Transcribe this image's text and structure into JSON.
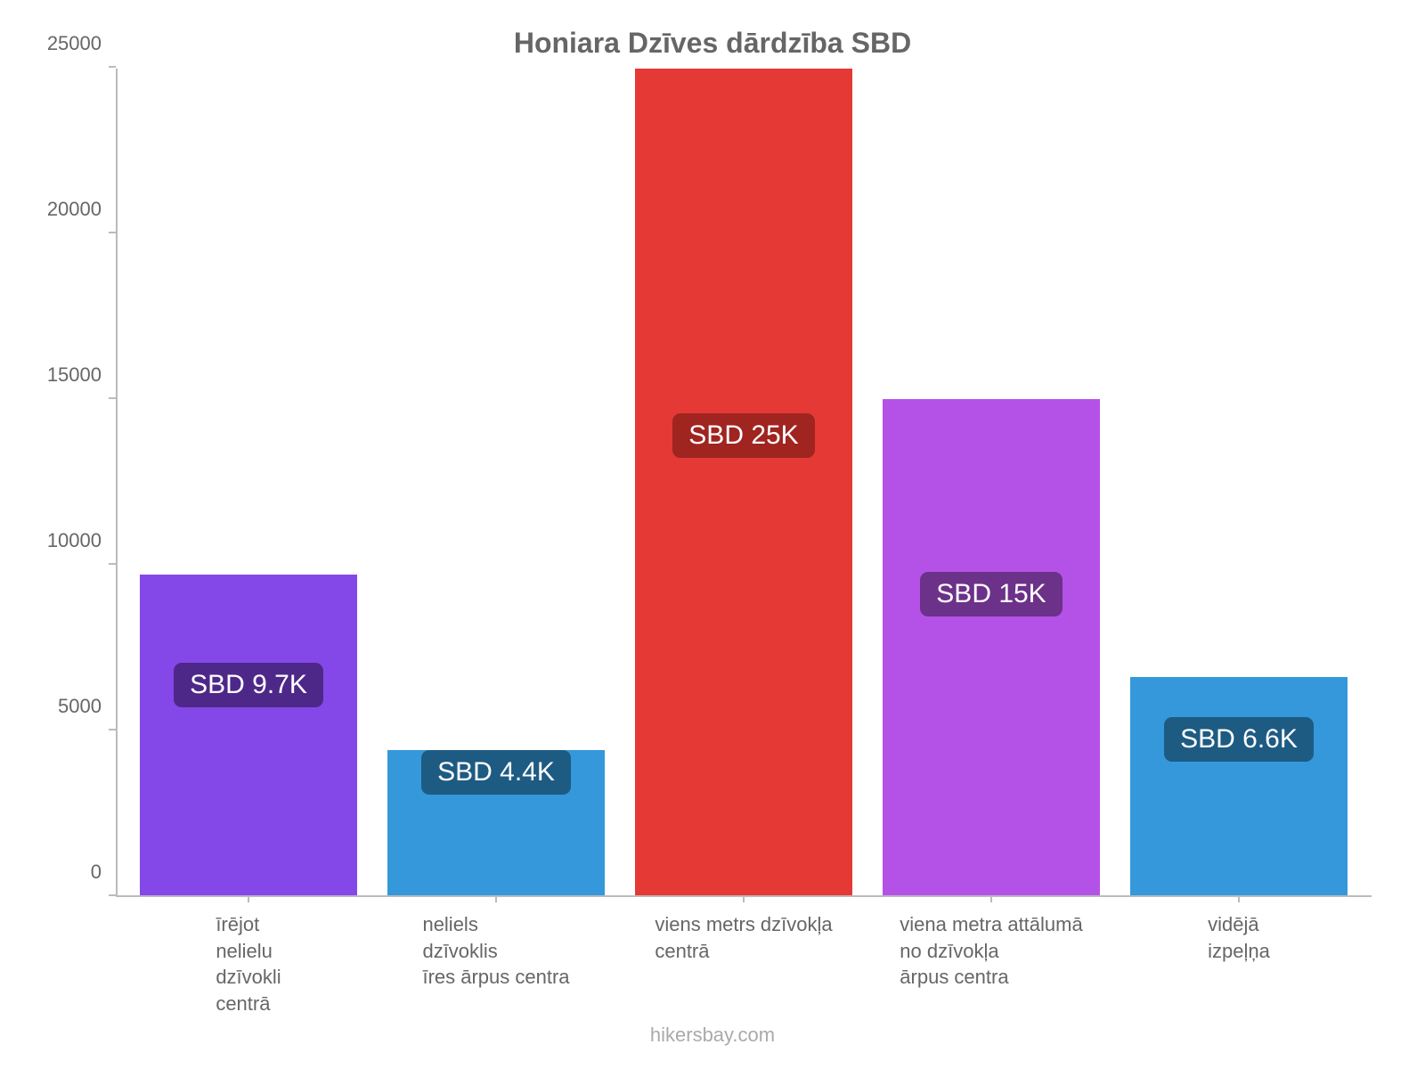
{
  "chart": {
    "type": "bar",
    "title": "Honiara Dzīves dārdzība SBD",
    "title_fontsize": 32,
    "title_color": "#666666",
    "background_color": "#ffffff",
    "axis_color": "#bbbbbb",
    "tick_label_color": "#666666",
    "tick_label_fontsize": 22,
    "y": {
      "min": 0,
      "max": 25000,
      "step": 5000,
      "ticks": [
        0,
        5000,
        10000,
        15000,
        20000,
        25000
      ]
    },
    "bars": [
      {
        "label": "īrējot\nnelielu\ndzīvokli\ncentrā",
        "value": 9700,
        "bar_color": "#8548e8",
        "badge_text": "SBD 9.7K",
        "badge_bg": "#4d2889",
        "badge_top_value": 7050
      },
      {
        "label": "neliels\ndzīvoklis\nīres ārpus centra",
        "value": 4400,
        "bar_color": "#3498db",
        "badge_text": "SBD 4.4K",
        "badge_bg": "#1e5b83",
        "badge_top_value": 4400
      },
      {
        "label": "viens metrs dzīvokļa\ncentrā",
        "value": 25000,
        "bar_color": "#e53935",
        "badge_text": "SBD 25K",
        "badge_bg": "#a02420",
        "badge_top_value": 14600
      },
      {
        "label": "viena metra attālumā\nno dzīvokļa\nārpus centra",
        "value": 15000,
        "bar_color": "#b452e8",
        "badge_text": "SBD 15K",
        "badge_bg": "#6c3189",
        "badge_top_value": 9800
      },
      {
        "label": "vidējā\nizpeļņa",
        "value": 6600,
        "bar_color": "#3498db",
        "badge_text": "SBD 6.6K",
        "badge_bg": "#1e5b83",
        "badge_top_value": 5400
      }
    ],
    "badge_fontsize": 30,
    "badge_text_color": "#ffffff",
    "bar_width_ratio": 0.88,
    "attribution": "hikersbay.com",
    "attribution_color": "#aaaaaa",
    "attribution_fontsize": 22
  }
}
